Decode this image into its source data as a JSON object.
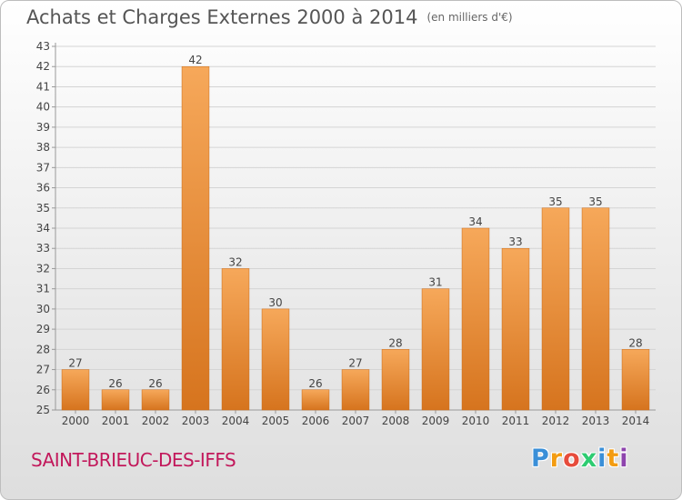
{
  "header": {
    "title": "Achats et Charges Externes 2000 à 2014",
    "unit": "(en milliers d'€)"
  },
  "footer": {
    "commune": "SAINT-BRIEUC-DES-IFFS",
    "logo": "Proxiti",
    "logo_letters": [
      "P",
      "r",
      "o",
      "x",
      "i",
      "t",
      "i"
    ],
    "logo_colors": [
      "#3a8fd8",
      "#f39c12",
      "#e74c3c",
      "#2ecc71",
      "#3a8fd8",
      "#f39c12",
      "#8e44ad"
    ]
  },
  "colors": {
    "bar_light": "#f6a85a",
    "bar_dark": "#d6741e",
    "grid": "#d4d4d4",
    "axis": "#999999"
  },
  "chart_data": {
    "type": "bar",
    "title": "Achats et Charges Externes 2000 à 2014",
    "subtitle": "(en milliers d'€)",
    "categories": [
      "2000",
      "2001",
      "2002",
      "2003",
      "2004",
      "2005",
      "2006",
      "2007",
      "2008",
      "2009",
      "2010",
      "2011",
      "2012",
      "2013",
      "2014"
    ],
    "values": [
      27,
      26,
      26,
      42,
      32,
      30,
      26,
      27,
      28,
      31,
      34,
      33,
      35,
      35,
      28
    ],
    "ylim": [
      25,
      43
    ],
    "yticks": [
      25,
      26,
      27,
      28,
      29,
      30,
      31,
      32,
      33,
      34,
      35,
      36,
      37,
      38,
      39,
      40,
      41,
      42,
      43
    ],
    "grid": true,
    "data_labels": true
  }
}
